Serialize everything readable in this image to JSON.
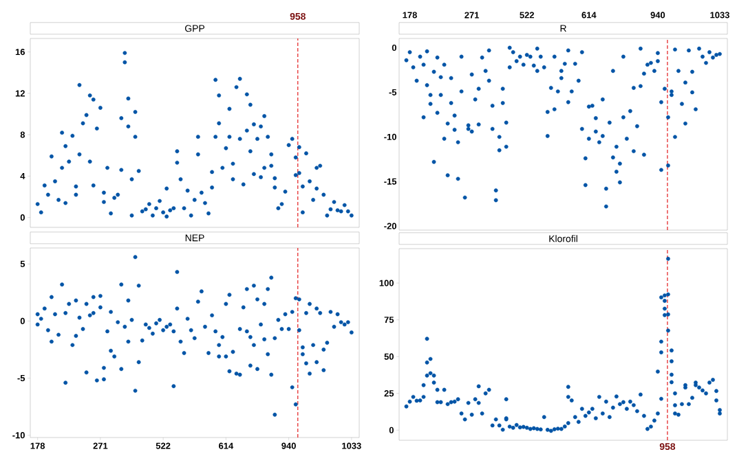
{
  "chart_data": [
    {
      "type": "scatter",
      "title": "GPP",
      "marker": "circle",
      "tick_labels": "y",
      "ylim": [
        -0.95,
        17.3
      ],
      "yticks": [
        0,
        4,
        8,
        12,
        16
      ],
      "annotations": [
        "958"
      ],
      "categories": [
        "178",
        null,
        null,
        null,
        null,
        null,
        null,
        null,
        null,
        null,
        null,
        null,
        null,
        null,
        null,
        null,
        null,
        null,
        "271",
        null,
        null,
        null,
        null,
        null,
        null,
        null,
        null,
        null,
        null,
        null,
        null,
        null,
        null,
        null,
        null,
        null,
        "522",
        null,
        null,
        null,
        null,
        null,
        null,
        null,
        null,
        null,
        null,
        null,
        null,
        null,
        null,
        null,
        null,
        null,
        "614",
        null,
        null,
        null,
        null,
        null,
        null,
        null,
        null,
        null,
        null,
        null,
        null,
        null,
        null,
        null,
        null,
        null,
        "940",
        null,
        null,
        null,
        null,
        null,
        null,
        null,
        null,
        null,
        null,
        null,
        null,
        null,
        null,
        null,
        null,
        null,
        "1033",
        null,
        null
      ],
      "series": [
        {
          "color": "#0054a6",
          "values": [
            1.3,
            0.5,
            3.1,
            2.2,
            5.9,
            3.5,
            1.7,
            4.8,
            6.9,
            5.4,
            7.9,
            2.2,
            12.8,
            9.1,
            9.9,
            11.8,
            3.1,
            8.6,
            10.6,
            2.4,
            4.8,
            0.4,
            1.9,
            2.2,
            9.6,
            15.0,
            11.5,
            3.7,
            7.8,
            4.5,
            0.6,
            0.8,
            1.3,
            0.2,
            0.9,
            1.6,
            0.5,
            2.8,
            0.7,
            0.9,
            5.3,
            3.7,
            0.9,
            2.6,
            0.2,
            1.7,
            6.1,
            2.4,
            1.4,
            0.4,
            2.9,
            7.8,
            11.8,
            4.8,
            6.7,
            7.8,
            3.7,
            12.6,
            13.4,
            3.2,
            8.4,
            10.9,
            9.0,
            7.6,
            8.8,
            9.8,
            7.8,
            6.1,
            2.9,
            0.9,
            1.3,
            2.5,
            7.0,
            7.6,
            4.1,
            6.8,
            3.0,
            6.2,
            3.5,
            1.7,
            4.8,
            5.0,
            2.2,
            0.2,
            0.8,
            1.5,
            0.7,
            0.6,
            1.2,
            0.6,
            0.2,
            null,
            null
          ]
        },
        {
          "color": "#0054a6",
          "values": [
            null,
            null,
            null,
            null,
            null,
            null,
            null,
            8.2,
            1.4,
            null,
            null,
            3.0,
            6.1,
            null,
            null,
            5.4,
            11.4,
            null,
            null,
            1.5,
            null,
            null,
            null,
            null,
            4.6,
            15.9,
            8.8,
            0.2,
            10.2,
            null,
            null,
            null,
            null,
            null,
            null,
            null,
            null,
            0.1,
            null,
            null,
            6.4,
            null,
            null,
            null,
            null,
            null,
            7.8,
            null,
            null,
            null,
            4.4,
            13.3,
            9.1,
            null,
            null,
            10.5,
            5.2,
            null,
            7.6,
            null,
            11.9,
            6.4,
            4.2,
            null,
            3.9,
            4.8,
            null,
            5.0,
            3.8,
            null,
            null,
            null,
            null,
            null,
            5.8,
            4.3,
            0.5,
            null,
            null,
            null,
            2.8,
            null,
            null,
            null,
            null,
            null,
            null,
            null,
            null,
            null,
            null,
            null,
            null
          ]
        }
      ]
    },
    {
      "type": "scatter",
      "title": "R",
      "marker": "circle",
      "ylim": [
        -20.45,
        1.04
      ],
      "yticks": [
        0,
        -5,
        -10,
        -15,
        -20
      ],
      "categories": [
        null,
        "178",
        null,
        null,
        null,
        null,
        null,
        null,
        null,
        null,
        null,
        null,
        null,
        null,
        null,
        null,
        null,
        null,
        null,
        "271",
        null,
        null,
        null,
        null,
        null,
        null,
        null,
        null,
        null,
        null,
        null,
        null,
        null,
        null,
        null,
        "522",
        null,
        null,
        null,
        null,
        null,
        null,
        null,
        null,
        null,
        null,
        null,
        null,
        null,
        null,
        null,
        null,
        null,
        "614",
        null,
        null,
        null,
        null,
        null,
        null,
        null,
        null,
        null,
        null,
        null,
        null,
        null,
        null,
        null,
        null,
        null,
        null,
        null,
        "940",
        null,
        null,
        null,
        null,
        null,
        null,
        null,
        null,
        null,
        null,
        null,
        null,
        null,
        null,
        null,
        null,
        null,
        "1033",
        null,
        null
      ],
      "series": [
        {
          "color": "#0054a6",
          "values": [
            -1.4,
            -0.5,
            -2.2,
            -3.7,
            -1.0,
            -7.8,
            -0.4,
            -5.3,
            -2.7,
            -7.3,
            -3.3,
            -10.2,
            -8.5,
            -3.4,
            -9.2,
            -14.7,
            -1.0,
            -16.8,
            -9.1,
            -9.4,
            -5.8,
            -8.6,
            -1.1,
            -2.6,
            -0.3,
            -6.5,
            -16.0,
            -11.5,
            -4.6,
            -8.4,
            0,
            -0.5,
            -1.5,
            -1.0,
            -1.9,
            -0.8,
            -1.0,
            -2.0,
            -2.6,
            -1.0,
            -2.2,
            -9.9,
            -4.5,
            -6.9,
            -4.9,
            -2.6,
            -1.8,
            -0.3,
            -4.9,
            -1.8,
            -3.7,
            -9.1,
            -15.4,
            -10.2,
            -6.5,
            -9.4,
            -10.6,
            -9.9,
            -17.8,
            -8.4,
            -12.3,
            -11.1,
            -15.1,
            -7.8,
            -10.2,
            -7.1,
            -11.6,
            -8.8,
            -4.3,
            -12.0,
            -1.9,
            -1.7,
            -2.6,
            -1.5,
            -6.1,
            -4.6,
            -13.2,
            -5.3,
            -0.2,
            -2.6,
            -6.3,
            -3.9,
            -0.3,
            -2.7,
            -6.9,
            -0.1,
            -1.0,
            -1.7,
            -0.5,
            -1.1,
            -0.8,
            -0.7,
            null,
            null
          ]
        },
        {
          "color": "#0054a6",
          "values": [
            null,
            null,
            null,
            null,
            null,
            -1.9,
            -4.2,
            -6.3,
            -12.8,
            -1.1,
            -5.3,
            -1.9,
            -14.3,
            -6.2,
            -7.6,
            -10.6,
            -4.9,
            null,
            -8.7,
            -3.0,
            null,
            -4.6,
            null,
            null,
            -3.7,
            -9.1,
            -17.1,
            -10.0,
            -6.2,
            -11.1,
            -2.2,
            null,
            null,
            null,
            null,
            null,
            null,
            null,
            -0.1,
            null,
            null,
            -7.2,
            null,
            -1.0,
            null,
            -3.4,
            null,
            -6.1,
            null,
            null,
            null,
            -0.5,
            -12.4,
            -6.6,
            null,
            -7.9,
            null,
            -5.8,
            -15.8,
            null,
            -2.6,
            -13.9,
            -13.0,
            -1.0,
            null,
            null,
            -4.5,
            null,
            -0.1,
            -2.9,
            null,
            null,
            null,
            -0.6,
            -13.7,
            null,
            -7.8,
            -4.9,
            -10.0,
            null,
            null,
            -8.5,
            null,
            -5.0,
            null,
            null,
            null,
            null,
            null,
            null,
            null,
            null,
            null,
            null
          ]
        }
      ]
    },
    {
      "type": "scatter",
      "title": "NEP",
      "marker": "circle",
      "ylim": [
        -10.2,
        6.4
      ],
      "yticks": [
        5,
        0,
        -5,
        -10
      ],
      "categories": [
        "178",
        null,
        null,
        null,
        null,
        null,
        null,
        null,
        null,
        null,
        null,
        null,
        null,
        null,
        null,
        null,
        null,
        null,
        "271",
        null,
        null,
        null,
        null,
        null,
        null,
        null,
        null,
        null,
        null,
        null,
        null,
        null,
        null,
        null,
        null,
        null,
        "522",
        null,
        null,
        null,
        null,
        null,
        null,
        null,
        null,
        null,
        null,
        null,
        null,
        null,
        null,
        null,
        null,
        null,
        "614",
        null,
        null,
        null,
        null,
        null,
        null,
        null,
        null,
        null,
        null,
        null,
        null,
        null,
        null,
        null,
        null,
        null,
        "940",
        null,
        null,
        null,
        null,
        null,
        null,
        null,
        null,
        null,
        null,
        null,
        null,
        null,
        null,
        null,
        null,
        null,
        "1033",
        null,
        null
      ],
      "series": [
        {
          "color": "#0054a6",
          "values": [
            -0.3,
            0.2,
            1.1,
            -0.8,
            2.1,
            0.6,
            -1.2,
            3.2,
            -5.4,
            1.5,
            -2.1,
            1.8,
            0.3,
            -0.7,
            1.5,
            0.5,
            0.7,
            -5.2,
            2.2,
            -5.1,
            -0.9,
            -2.6,
            -3.1,
            -0.1,
            3.2,
            -0.5,
            1.8,
            0.1,
            5.6,
            -3.6,
            -1.7,
            -0.3,
            -0.6,
            -1.1,
            -0.2,
            0.1,
            -0.8,
            -0.5,
            -0.3,
            -0.9,
            1.1,
            -1.8,
            -2.8,
            0.2,
            -0.8,
            -1.5,
            1.7,
            2.6,
            -0.5,
            -2.8,
            0.5,
            -0.9,
            -2.1,
            -1.4,
            -3.1,
            2.3,
            -2.7,
            -4.6,
            -0.7,
            1.2,
            -0.9,
            -1.4,
            3.1,
            1.9,
            -0.3,
            -1.6,
            -2.9,
            3.8,
            -1.5,
            0.1,
            -0.7,
            0.6,
            -0.7,
            0.8,
            2.0,
            1.9,
            -2.3,
            0.7,
            1.5,
            -2.1,
            1.1,
            0.7,
            -2.5,
            -1.9,
            0.8,
            -0.5,
            0.6,
            -0.1,
            -0.3,
            -0.1,
            -1.0,
            null,
            null
          ]
        },
        {
          "color": "#0054a6",
          "values": [
            0.6,
            null,
            null,
            null,
            -1.8,
            null,
            null,
            null,
            0.7,
            null,
            null,
            -1.3,
            null,
            null,
            -4.5,
            null,
            2.1,
            null,
            1.2,
            -4.1,
            null,
            0.8,
            null,
            null,
            -4.2,
            null,
            -1.8,
            null,
            -6.1,
            3.1,
            null,
            null,
            null,
            null,
            null,
            null,
            null,
            null,
            null,
            -5.7,
            4.3,
            null,
            null,
            null,
            null,
            null,
            null,
            null,
            null,
            null,
            null,
            null,
            -3.1,
            null,
            1.5,
            -4.4,
            null,
            null,
            -4.7,
            null,
            2.8,
            -3.9,
            -2.1,
            -4.2,
            null,
            1.5,
            2.8,
            -4.7,
            -8.2,
            null,
            null,
            null,
            null,
            -5.8,
            -7.3,
            -0.8,
            -2.9,
            -3.7,
            -4.6,
            null,
            -3.6,
            null,
            -4.3,
            null,
            null,
            null,
            null,
            null,
            null,
            null,
            null,
            null,
            null
          ]
        }
      ]
    },
    {
      "type": "scatter",
      "title": "Klorofil",
      "marker": "circle",
      "tick_labels": "y",
      "ylim": [
        -6.9,
        123.4
      ],
      "yticks": [
        0,
        25,
        50,
        75,
        100
      ],
      "annotations": [
        "958"
      ],
      "categories": [
        null,
        "178",
        null,
        null,
        null,
        null,
        null,
        null,
        null,
        null,
        null,
        null,
        null,
        null,
        null,
        null,
        null,
        null,
        null,
        "271",
        null,
        null,
        null,
        null,
        null,
        null,
        null,
        null,
        null,
        null,
        null,
        null,
        null,
        null,
        null,
        "522",
        null,
        null,
        null,
        null,
        null,
        null,
        null,
        null,
        null,
        null,
        null,
        null,
        null,
        null,
        null,
        null,
        null,
        "614",
        null,
        null,
        null,
        null,
        null,
        null,
        null,
        null,
        null,
        null,
        null,
        null,
        null,
        null,
        null,
        null,
        null,
        null,
        null,
        "940",
        null,
        null,
        null,
        null,
        null,
        null,
        null,
        null,
        null,
        null,
        null,
        null,
        null,
        null,
        null,
        null,
        null,
        "1033",
        null,
        null
      ],
      "series": [
        {
          "color": "#0054a6",
          "values": [
            16.1,
            19.4,
            22.6,
            20.0,
            20.2,
            22.6,
            37.1,
            38.7,
            37.1,
            27.4,
            19.0,
            27.4,
            17.7,
            19.0,
            19.4,
            21.0,
            11.3,
            7.3,
            18.5,
            10.5,
            21.0,
            29.8,
            11.3,
            25.0,
            27.4,
            3.2,
            7.3,
            3.2,
            0.3,
            8.1,
            2.4,
            1.6,
            3.5,
            1.9,
            2.2,
            1.6,
            0.8,
            1.3,
            0.8,
            0.5,
            8.9,
            0.2,
            -0.5,
            0.6,
            1.0,
            0.8,
            2.5,
            4.8,
            20.2,
            8.9,
            5.6,
            14.5,
            9.7,
            12.0,
            14.5,
            8.1,
            22.6,
            11.3,
            19.4,
            8.9,
            15.3,
            22.9,
            17.7,
            19.0,
            14.5,
            19.4,
            17.0,
            12.9,
            24.2,
            9.7,
            0.8,
            2.4,
            6.5,
            11.3,
            21.3,
            78.2,
            92.3,
            54.2,
            25.0,
            10.5,
            17.7,
            29.0,
            17.7,
            22.0,
            30.6,
            29.0,
            27.0,
            25.0,
            32.3,
            34.2,
            26.6,
            13.7,
            null,
            null
          ]
        },
        {
          "color": "#0054a6",
          "values": [
            null,
            null,
            null,
            null,
            null,
            30.6,
            62.1,
            48.4,
            32.3,
            19.0,
            null,
            null,
            null,
            null,
            null,
            null,
            null,
            null,
            null,
            null,
            null,
            18.5,
            null,
            null,
            null,
            null,
            null,
            null,
            null,
            21.0,
            null,
            null,
            null,
            null,
            null,
            null,
            null,
            null,
            null,
            null,
            null,
            null,
            null,
            null,
            null,
            null,
            null,
            29.4,
            null,
            null,
            null,
            null,
            null,
            null,
            null,
            null,
            null,
            null,
            null,
            null,
            null,
            null,
            null,
            null,
            null,
            null,
            null,
            null,
            null,
            null,
            null,
            null,
            null,
            39.8,
            52.9,
            82.6,
            116.5,
            46.8,
            16.9,
            null,
            null,
            30.6,
            null,
            null,
            32.3,
            null,
            null,
            null,
            null,
            null,
            20.2,
            11.3,
            null,
            null
          ]
        },
        {
          "color": "#0054a6",
          "values": [
            null,
            null,
            null,
            null,
            null,
            null,
            46.0,
            null,
            null,
            null,
            null,
            null,
            null,
            null,
            null,
            null,
            null,
            null,
            null,
            null,
            null,
            null,
            null,
            null,
            null,
            null,
            null,
            null,
            null,
            7.3,
            null,
            null,
            null,
            null,
            null,
            null,
            null,
            null,
            null,
            null,
            null,
            null,
            null,
            null,
            null,
            null,
            null,
            22.6,
            null,
            null,
            null,
            null,
            null,
            null,
            null,
            null,
            null,
            null,
            null,
            null,
            null,
            null,
            null,
            null,
            null,
            null,
            null,
            null,
            null,
            null,
            null,
            null,
            null,
            null,
            60.2,
            87.9,
            78.7,
            37.7,
            11.3,
            null,
            null,
            null,
            null,
            null,
            null,
            null,
            null,
            null,
            null,
            null,
            null,
            null,
            null,
            null
          ]
        },
        {
          "color": "#0054a6",
          "values": [
            null,
            null,
            null,
            null,
            null,
            null,
            null,
            null,
            null,
            null,
            null,
            null,
            null,
            null,
            null,
            null,
            null,
            null,
            null,
            null,
            null,
            null,
            null,
            null,
            null,
            null,
            null,
            null,
            null,
            null,
            null,
            null,
            null,
            null,
            null,
            null,
            null,
            null,
            null,
            null,
            null,
            null,
            null,
            null,
            null,
            null,
            null,
            null,
            null,
            null,
            null,
            null,
            null,
            null,
            null,
            null,
            null,
            null,
            null,
            null,
            null,
            null,
            null,
            null,
            null,
            null,
            null,
            null,
            null,
            null,
            null,
            null,
            null,
            null,
            90.3,
            91.6,
            67.7,
            32.6,
            null,
            null,
            null,
            null,
            null,
            null,
            null,
            null,
            null,
            null,
            null,
            null,
            null,
            null,
            null,
            null
          ]
        }
      ]
    }
  ]
}
